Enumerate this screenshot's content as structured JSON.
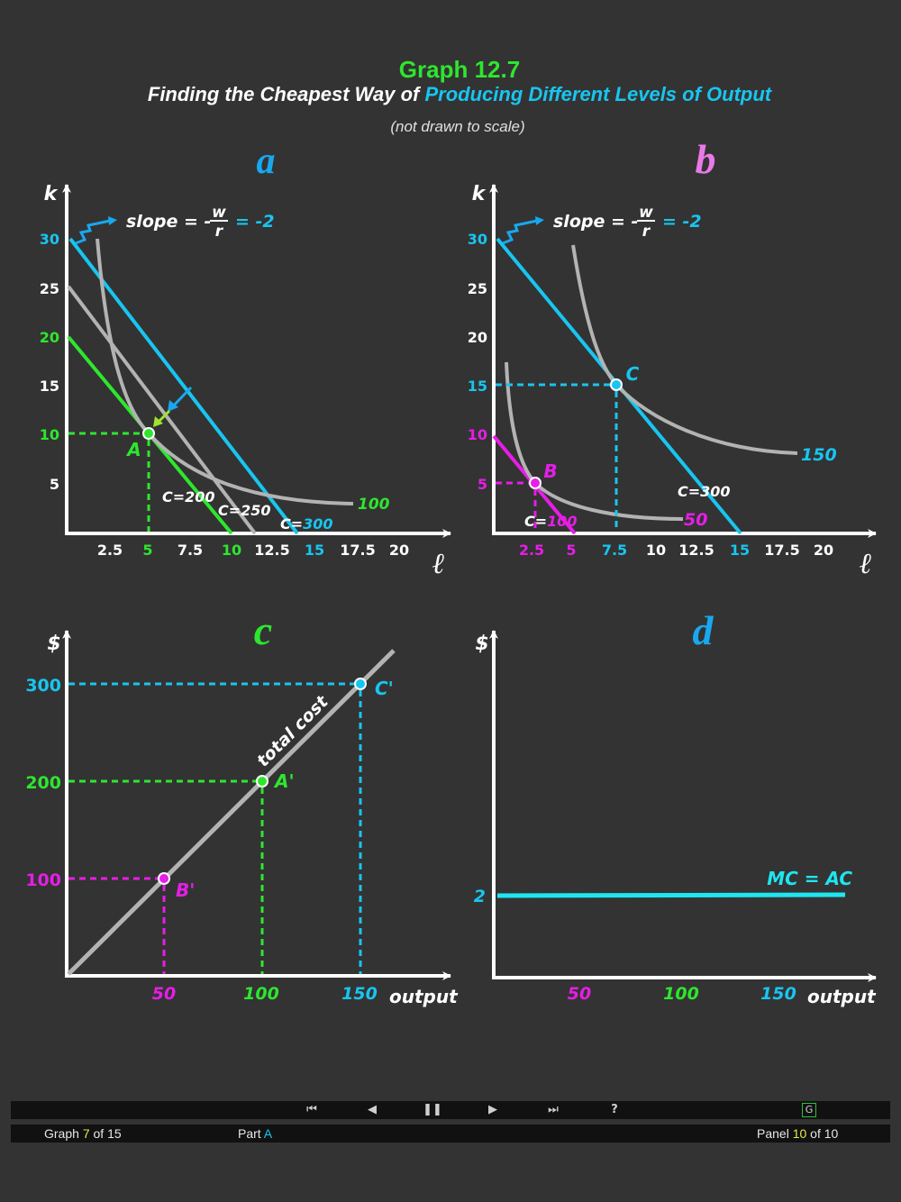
{
  "title": "Graph 12.7",
  "subtitle_part1": "Finding the Cheapest Way of ",
  "subtitle_part2": "Producing Different Levels of Output",
  "note": "(not drawn to scale)",
  "colors": {
    "green": "#2ee62e",
    "cyan": "#18c5f0",
    "magenta": "#e61ee6",
    "white": "#ffffff",
    "grey": "#b3b3b3",
    "mc": "#1ee6f0"
  },
  "chart_data": [
    {
      "panel": "a",
      "type": "line",
      "xlabel": "ℓ",
      "ylabel": "k",
      "xticks": [
        "2.5",
        "5",
        "7.5",
        "10",
        "12.5",
        "15",
        "17.5",
        "20"
      ],
      "yticks": [
        "5",
        "10",
        "15",
        "20",
        "25",
        "30"
      ],
      "slope_prefix": "slope = -",
      "slope_num": "w",
      "slope_den": "r",
      "slope_value": "= -2",
      "isocost": [
        {
          "label": "C=200",
          "k_intercept": 20,
          "l_intercept": 10
        },
        {
          "label": "C=250",
          "k_intercept": 25,
          "l_intercept": 12.5
        },
        {
          "label_prefix": "C=",
          "label_value": "300",
          "k_intercept": 30,
          "l_intercept": 15
        }
      ],
      "isoquant": {
        "label": "100",
        "tangent_point": {
          "name": "A",
          "l": 5,
          "k": 10
        }
      }
    },
    {
      "panel": "b",
      "type": "line",
      "xlabel": "ℓ",
      "ylabel": "k",
      "xticks": [
        "2.5",
        "5",
        "7.5",
        "10",
        "12.5",
        "15",
        "17.5",
        "20"
      ],
      "yticks": [
        "5",
        "10",
        "15",
        "20",
        "25",
        "30"
      ],
      "slope_prefix": "slope = -",
      "slope_num": "w",
      "slope_den": "r",
      "slope_value": "= -2",
      "isocost": [
        {
          "label_prefix": "C=",
          "label_value": "100",
          "k_intercept": 10,
          "l_intercept": 5
        },
        {
          "label": "C=300",
          "k_intercept": 30,
          "l_intercept": 15
        }
      ],
      "isoquants": [
        {
          "label": "50",
          "tangent_point": {
            "name": "B",
            "l": 2.5,
            "k": 5
          }
        },
        {
          "label": "150",
          "tangent_point": {
            "name": "C",
            "l": 7.5,
            "k": 15
          }
        }
      ]
    },
    {
      "panel": "c",
      "type": "line",
      "xlabel": "output",
      "ylabel": "$",
      "xticks": [
        "50",
        "100",
        "150"
      ],
      "yticks": [
        "100",
        "200",
        "300"
      ],
      "series": [
        {
          "name": "total cost",
          "x": [
            0,
            50,
            100,
            150
          ],
          "y": [
            0,
            100,
            200,
            300
          ]
        }
      ],
      "points": [
        {
          "name": "B'",
          "x": 50,
          "y": 100
        },
        {
          "name": "A'",
          "x": 100,
          "y": 200
        },
        {
          "name": "C'",
          "x": 150,
          "y": 300
        }
      ]
    },
    {
      "panel": "d",
      "type": "line",
      "xlabel": "output",
      "ylabel": "$",
      "xticks": [
        "50",
        "100",
        "150"
      ],
      "yticks": [
        "2"
      ],
      "series": [
        {
          "name": "MC = AC",
          "x": [
            0,
            180
          ],
          "y": [
            2,
            2
          ]
        }
      ]
    }
  ],
  "nav": {
    "buttons": [
      "⏮",
      "◀",
      "❚❚",
      "▶",
      "⏭",
      "?"
    ],
    "g": "G",
    "graph_label": "Graph ",
    "graph_num": "7",
    "graph_total": " of 15",
    "part_label": "Part ",
    "part_value": "A",
    "panel_label": "Panel ",
    "panel_num": "10",
    "panel_total": " of 10"
  }
}
